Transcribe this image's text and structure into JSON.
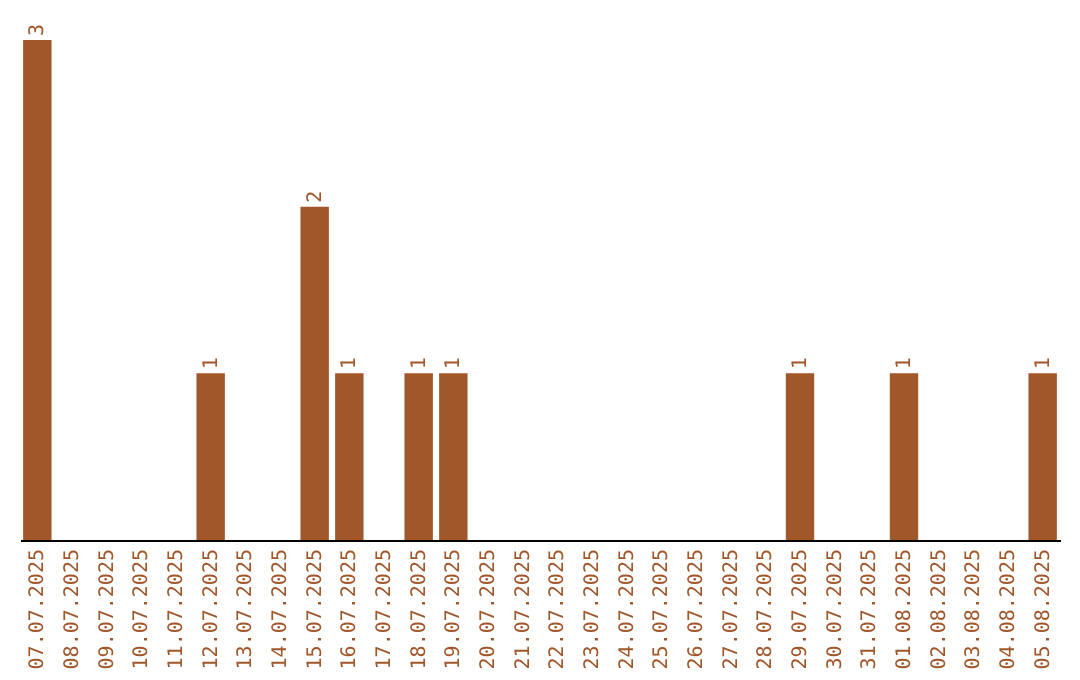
{
  "chart_data": {
    "type": "bar",
    "categories": [
      "07.07.2025",
      "08.07.2025",
      "09.07.2025",
      "10.07.2025",
      "11.07.2025",
      "12.07.2025",
      "13.07.2025",
      "14.07.2025",
      "15.07.2025",
      "16.07.2025",
      "17.07.2025",
      "18.07.2025",
      "19.07.2025",
      "20.07.2025",
      "21.07.2025",
      "22.07.2025",
      "23.07.2025",
      "24.07.2025",
      "25.07.2025",
      "26.07.2025",
      "27.07.2025",
      "28.07.2025",
      "29.07.2025",
      "30.07.2025",
      "31.07.2025",
      "01.08.2025",
      "02.08.2025",
      "03.08.2025",
      "04.08.2025",
      "05.08.2025"
    ],
    "values": [
      3,
      0,
      0,
      0,
      0,
      1,
      0,
      0,
      2,
      1,
      0,
      1,
      1,
      0,
      0,
      0,
      0,
      0,
      0,
      0,
      0,
      0,
      1,
      0,
      0,
      1,
      0,
      0,
      0,
      1
    ],
    "value_labels": [
      "3",
      null,
      null,
      null,
      null,
      "1",
      null,
      null,
      "2",
      "1",
      null,
      "1",
      "1",
      null,
      null,
      null,
      null,
      null,
      null,
      null,
      null,
      null,
      "1",
      null,
      null,
      "1",
      null,
      null,
      null,
      "1"
    ],
    "color": "#a0572a"
  }
}
